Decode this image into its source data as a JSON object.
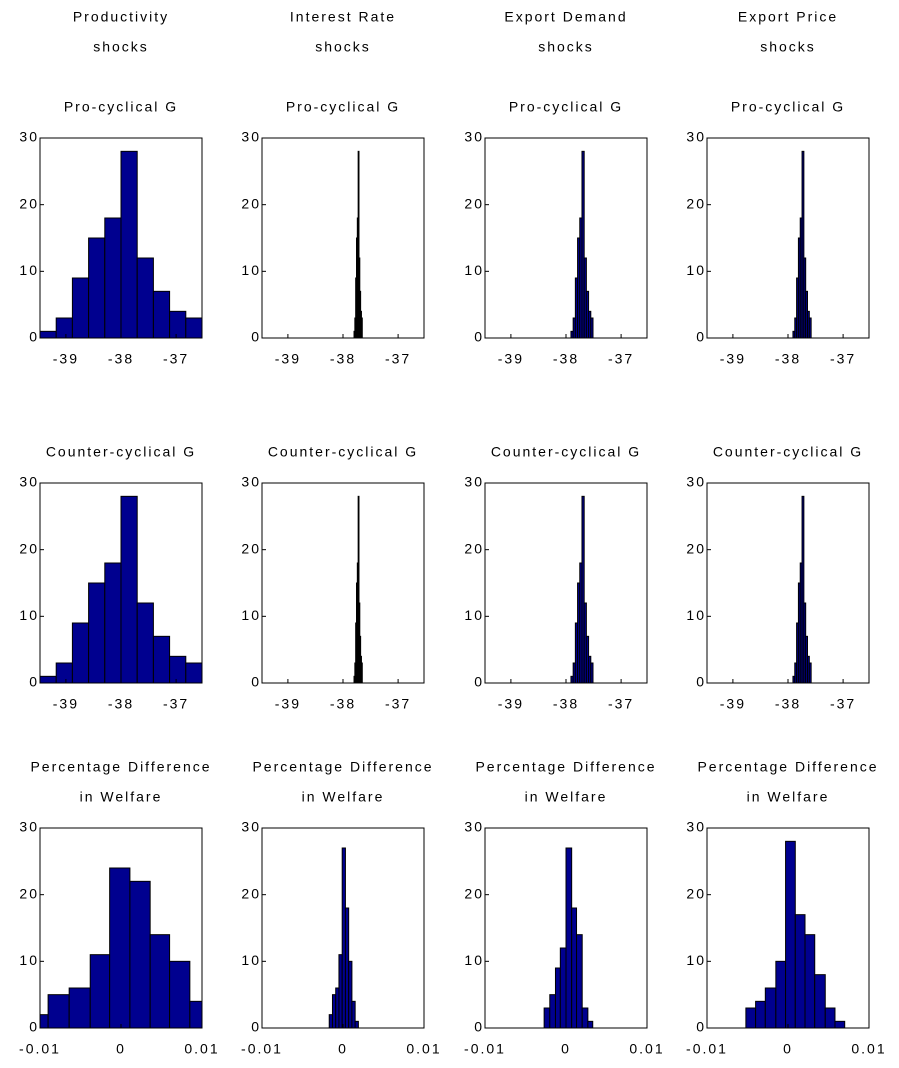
{
  "column_titles": [
    [
      "Productivity",
      "shocks"
    ],
    [
      "Interest Rate",
      "shocks"
    ],
    [
      "Export Demand",
      "shocks"
    ],
    [
      "Export Price",
      "shocks"
    ]
  ],
  "chart_data": [
    {
      "type": "histogram",
      "title": [
        "Pro-cyclical G"
      ],
      "bins": [
        -39.47,
        -39.176,
        -38.882,
        -38.588,
        -38.294,
        -38.0,
        -37.706,
        -37.412,
        -37.118,
        -36.824,
        -36.53
      ],
      "counts": [
        1,
        3,
        9,
        15,
        18,
        28,
        12,
        7,
        4,
        3
      ],
      "color": "#00008f",
      "xlim": [
        -39.47,
        -36.53
      ],
      "xticks": [
        -39,
        -38,
        -37
      ],
      "ylim": [
        0,
        30
      ],
      "yticks": [
        0,
        10,
        20,
        30
      ]
    },
    {
      "type": "histogram",
      "title": [
        "Pro-cyclical G"
      ],
      "bins": [
        -37.8,
        -37.785,
        -37.77,
        -37.755,
        -37.74,
        -37.725,
        -37.71,
        -37.695,
        -37.68,
        -37.665,
        -37.65
      ],
      "counts": [
        1,
        3,
        9,
        15,
        18,
        28,
        12,
        7,
        4,
        3
      ],
      "color": "#00008f",
      "xlim": [
        -39.47,
        -36.53
      ],
      "xticks": [
        -39,
        -38,
        -37
      ],
      "ylim": [
        0,
        30
      ],
      "yticks": [
        0,
        10,
        20,
        30
      ]
    },
    {
      "type": "histogram",
      "title": [
        "Pro-cyclical G"
      ],
      "bins": [
        -37.91,
        -37.87,
        -37.83,
        -37.79,
        -37.75,
        -37.71,
        -37.67,
        -37.63,
        -37.59,
        -37.55,
        -37.51
      ],
      "counts": [
        1,
        3,
        9,
        15,
        18,
        28,
        12,
        7,
        4,
        3
      ],
      "color": "#00008f",
      "xlim": [
        -39.47,
        -36.53
      ],
      "xticks": [
        -39,
        -38,
        -37
      ],
      "ylim": [
        0,
        30
      ],
      "yticks": [
        0,
        10,
        20,
        30
      ]
    },
    {
      "type": "histogram",
      "title": [
        "Pro-cyclical G"
      ],
      "bins": [
        -37.91,
        -37.877,
        -37.844,
        -37.811,
        -37.778,
        -37.745,
        -37.712,
        -37.679,
        -37.646,
        -37.613,
        -37.58
      ],
      "counts": [
        1,
        3,
        9,
        15,
        18,
        28,
        12,
        7,
        4,
        3
      ],
      "color": "#00008f",
      "xlim": [
        -39.47,
        -36.53
      ],
      "xticks": [
        -39,
        -38,
        -37
      ],
      "ylim": [
        0,
        30
      ],
      "yticks": [
        0,
        10,
        20,
        30
      ]
    },
    {
      "type": "histogram",
      "title": [
        "Counter-cyclical G"
      ],
      "bins": [
        -39.47,
        -39.176,
        -38.882,
        -38.588,
        -38.294,
        -38.0,
        -37.706,
        -37.412,
        -37.118,
        -36.824,
        -36.53
      ],
      "counts": [
        1,
        3,
        9,
        15,
        18,
        28,
        12,
        7,
        4,
        3
      ],
      "color": "#00008f",
      "xlim": [
        -39.47,
        -36.53
      ],
      "xticks": [
        -39,
        -38,
        -37
      ],
      "ylim": [
        0,
        30
      ],
      "yticks": [
        0,
        10,
        20,
        30
      ]
    },
    {
      "type": "histogram",
      "title": [
        "Counter-cyclical G"
      ],
      "bins": [
        -37.8,
        -37.785,
        -37.77,
        -37.755,
        -37.74,
        -37.725,
        -37.71,
        -37.695,
        -37.68,
        -37.665,
        -37.65
      ],
      "counts": [
        1,
        3,
        9,
        15,
        18,
        28,
        12,
        7,
        4,
        3
      ],
      "color": "#00008f",
      "xlim": [
        -39.47,
        -36.53
      ],
      "xticks": [
        -39,
        -38,
        -37
      ],
      "ylim": [
        0,
        30
      ],
      "yticks": [
        0,
        10,
        20,
        30
      ]
    },
    {
      "type": "histogram",
      "title": [
        "Counter-cyclical G"
      ],
      "bins": [
        -37.91,
        -37.87,
        -37.83,
        -37.79,
        -37.75,
        -37.71,
        -37.67,
        -37.63,
        -37.59,
        -37.55,
        -37.51
      ],
      "counts": [
        1,
        3,
        9,
        15,
        18,
        28,
        12,
        7,
        4,
        3
      ],
      "color": "#00008f",
      "xlim": [
        -39.47,
        -36.53
      ],
      "xticks": [
        -39,
        -38,
        -37
      ],
      "ylim": [
        0,
        30
      ],
      "yticks": [
        0,
        10,
        20,
        30
      ]
    },
    {
      "type": "histogram",
      "title": [
        "Counter-cyclical G"
      ],
      "bins": [
        -37.91,
        -37.877,
        -37.844,
        -37.811,
        -37.778,
        -37.745,
        -37.712,
        -37.679,
        -37.646,
        -37.613,
        -37.58
      ],
      "counts": [
        1,
        3,
        9,
        15,
        18,
        28,
        12,
        7,
        4,
        3
      ],
      "color": "#00008f",
      "xlim": [
        -39.47,
        -36.53
      ],
      "xticks": [
        -39,
        -38,
        -37
      ],
      "ylim": [
        0,
        30
      ],
      "yticks": [
        0,
        10,
        20,
        30
      ]
    },
    {
      "type": "histogram",
      "title": [
        "Percentage Difference",
        "in Welfare"
      ],
      "bins": [
        -0.01,
        -0.009,
        -0.0064,
        -0.0038,
        -0.0014,
        0.0011,
        0.0036,
        0.006,
        0.0085,
        0.01
      ],
      "counts": [
        2,
        5,
        6,
        11,
        24,
        22,
        14,
        10,
        4
      ],
      "color": "#00008f",
      "xlim": [
        -0.01,
        0.01
      ],
      "xticks": [
        -0.01,
        0,
        0.01
      ],
      "ylim": [
        0,
        30
      ],
      "yticks": [
        0,
        10,
        20,
        30
      ]
    },
    {
      "type": "histogram",
      "title": [
        "Percentage Difference",
        "in Welfare"
      ],
      "bins": [
        -0.0017,
        -0.0013,
        -0.0009,
        -0.0005,
        -0.0001,
        0.0003,
        0.0007,
        0.0011,
        0.0015,
        0.0019
      ],
      "counts": [
        2,
        5,
        6,
        11,
        27,
        18,
        10,
        4,
        1
      ],
      "color": "#00008f",
      "xlim": [
        -0.01,
        0.01
      ],
      "xticks": [
        -0.01,
        0,
        0.01
      ],
      "ylim": [
        0,
        30
      ],
      "yticks": [
        0,
        10,
        20,
        30
      ]
    },
    {
      "type": "histogram",
      "title": [
        "Percentage Difference",
        "in Welfare"
      ],
      "bins": [
        -0.0027,
        -0.002,
        -0.0013,
        -0.0007,
        0,
        0.0007,
        0.0013,
        0.002,
        0.0027,
        0.0033
      ],
      "counts": [
        3,
        5,
        9,
        12,
        27,
        18,
        14,
        3,
        1
      ],
      "color": "#00008f",
      "xlim": [
        -0.01,
        0.01
      ],
      "xticks": [
        -0.01,
        0,
        0.01
      ],
      "ylim": [
        0,
        30
      ],
      "yticks": [
        0,
        10,
        20,
        30
      ]
    },
    {
      "type": "histogram",
      "title": [
        "Percentage Difference",
        "in Welfare"
      ],
      "bins": [
        -0.0052,
        -0.004,
        -0.0028,
        -0.0015,
        -0.0003,
        0.0009,
        0.0021,
        0.0033,
        0.0046,
        0.0058,
        0.007
      ],
      "counts": [
        3,
        4,
        6,
        10,
        28,
        17,
        14,
        8,
        3,
        1
      ],
      "color": "#00008f",
      "xlim": [
        -0.01,
        0.01
      ],
      "xticks": [
        -0.01,
        0,
        0.01
      ],
      "ylim": [
        0,
        30
      ],
      "yticks": [
        0,
        10,
        20,
        30
      ]
    }
  ]
}
